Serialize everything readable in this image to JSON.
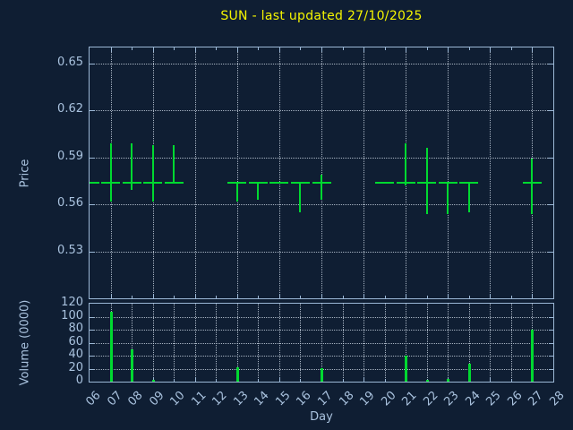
{
  "title": "SUN - last updated 27/10/2025",
  "xlabel": "Day",
  "xticks": [
    "06",
    "07",
    "08",
    "09",
    "10",
    "11",
    "12",
    "13",
    "14",
    "15",
    "16",
    "17",
    "18",
    "19",
    "20",
    "21",
    "22",
    "23",
    "24",
    "25",
    "26",
    "27",
    "28"
  ],
  "price_panel": {
    "ylabel": "Price",
    "ytick_labels": [
      "0.65",
      "0.62",
      "0.59",
      "0.56",
      "0.53"
    ]
  },
  "volume_panel": {
    "ylabel": "Volume (0000)",
    "ytick_labels": [
      "120",
      "100",
      "80",
      "60",
      "40",
      "20",
      "0"
    ]
  },
  "colors": {
    "background": "#0f1e33",
    "axis": "#9cb8d6",
    "text": "#a9c2de",
    "title": "#f5f500",
    "bars": "#00d930",
    "grid": "rgba(205,216,230,0.8)"
  },
  "chart_data": [
    {
      "type": "ohlc",
      "title": "SUN daily price",
      "xlabel": "Day",
      "ylabel": "Price",
      "ylim": [
        0.5,
        0.66
      ],
      "yticks": [
        0.65,
        0.62,
        0.59,
        0.56,
        0.53
      ],
      "xlim_days": [
        6,
        28
      ],
      "grid": true,
      "gridline_days": [
        7,
        9,
        11,
        13,
        15,
        17,
        19,
        21,
        23,
        25,
        27
      ],
      "points": [
        {
          "day": 6,
          "high": 0.574,
          "low": 0.574,
          "close": 0.574
        },
        {
          "day": 7,
          "high": 0.599,
          "low": 0.562,
          "close": 0.574
        },
        {
          "day": 8,
          "high": 0.599,
          "low": 0.569,
          "close": 0.574
        },
        {
          "day": 9,
          "high": 0.598,
          "low": 0.562,
          "close": 0.574
        },
        {
          "day": 10,
          "high": 0.598,
          "low": 0.574,
          "close": 0.574
        },
        {
          "day": 13,
          "high": 0.574,
          "low": 0.562,
          "close": 0.574
        },
        {
          "day": 14,
          "high": 0.574,
          "low": 0.563,
          "close": 0.574
        },
        {
          "day": 15,
          "high": 0.574,
          "low": 0.574,
          "close": 0.574
        },
        {
          "day": 16,
          "high": 0.574,
          "low": 0.555,
          "close": 0.574
        },
        {
          "day": 17,
          "high": 0.579,
          "low": 0.563,
          "close": 0.574
        },
        {
          "day": 20,
          "high": 0.574,
          "low": 0.574,
          "close": 0.574
        },
        {
          "day": 21,
          "high": 0.599,
          "low": 0.572,
          "close": 0.574
        },
        {
          "day": 22,
          "high": 0.596,
          "low": 0.554,
          "close": 0.574
        },
        {
          "day": 23,
          "high": 0.574,
          "low": 0.554,
          "close": 0.574
        },
        {
          "day": 24,
          "high": 0.574,
          "low": 0.555,
          "close": 0.574
        },
        {
          "day": 27,
          "high": 0.589,
          "low": 0.554,
          "close": 0.574
        }
      ]
    },
    {
      "type": "bar",
      "title": "SUN daily volume",
      "xlabel": "Day",
      "ylabel": "Volume (0000)",
      "ylim": [
        0,
        120
      ],
      "yticks": [
        120,
        100,
        80,
        60,
        40,
        20,
        0
      ],
      "grid": true,
      "categories": [
        "06",
        "07",
        "08",
        "09",
        "10",
        "11",
        "12",
        "13",
        "14",
        "15",
        "16",
        "17",
        "18",
        "19",
        "20",
        "21",
        "22",
        "23",
        "24",
        "25",
        "26",
        "27",
        "28"
      ],
      "values": [
        0,
        108,
        50,
        3,
        0,
        0,
        0,
        22,
        0,
        0,
        0,
        21,
        0,
        0,
        0,
        40,
        3,
        4,
        28,
        0,
        0,
        80,
        0
      ]
    }
  ]
}
